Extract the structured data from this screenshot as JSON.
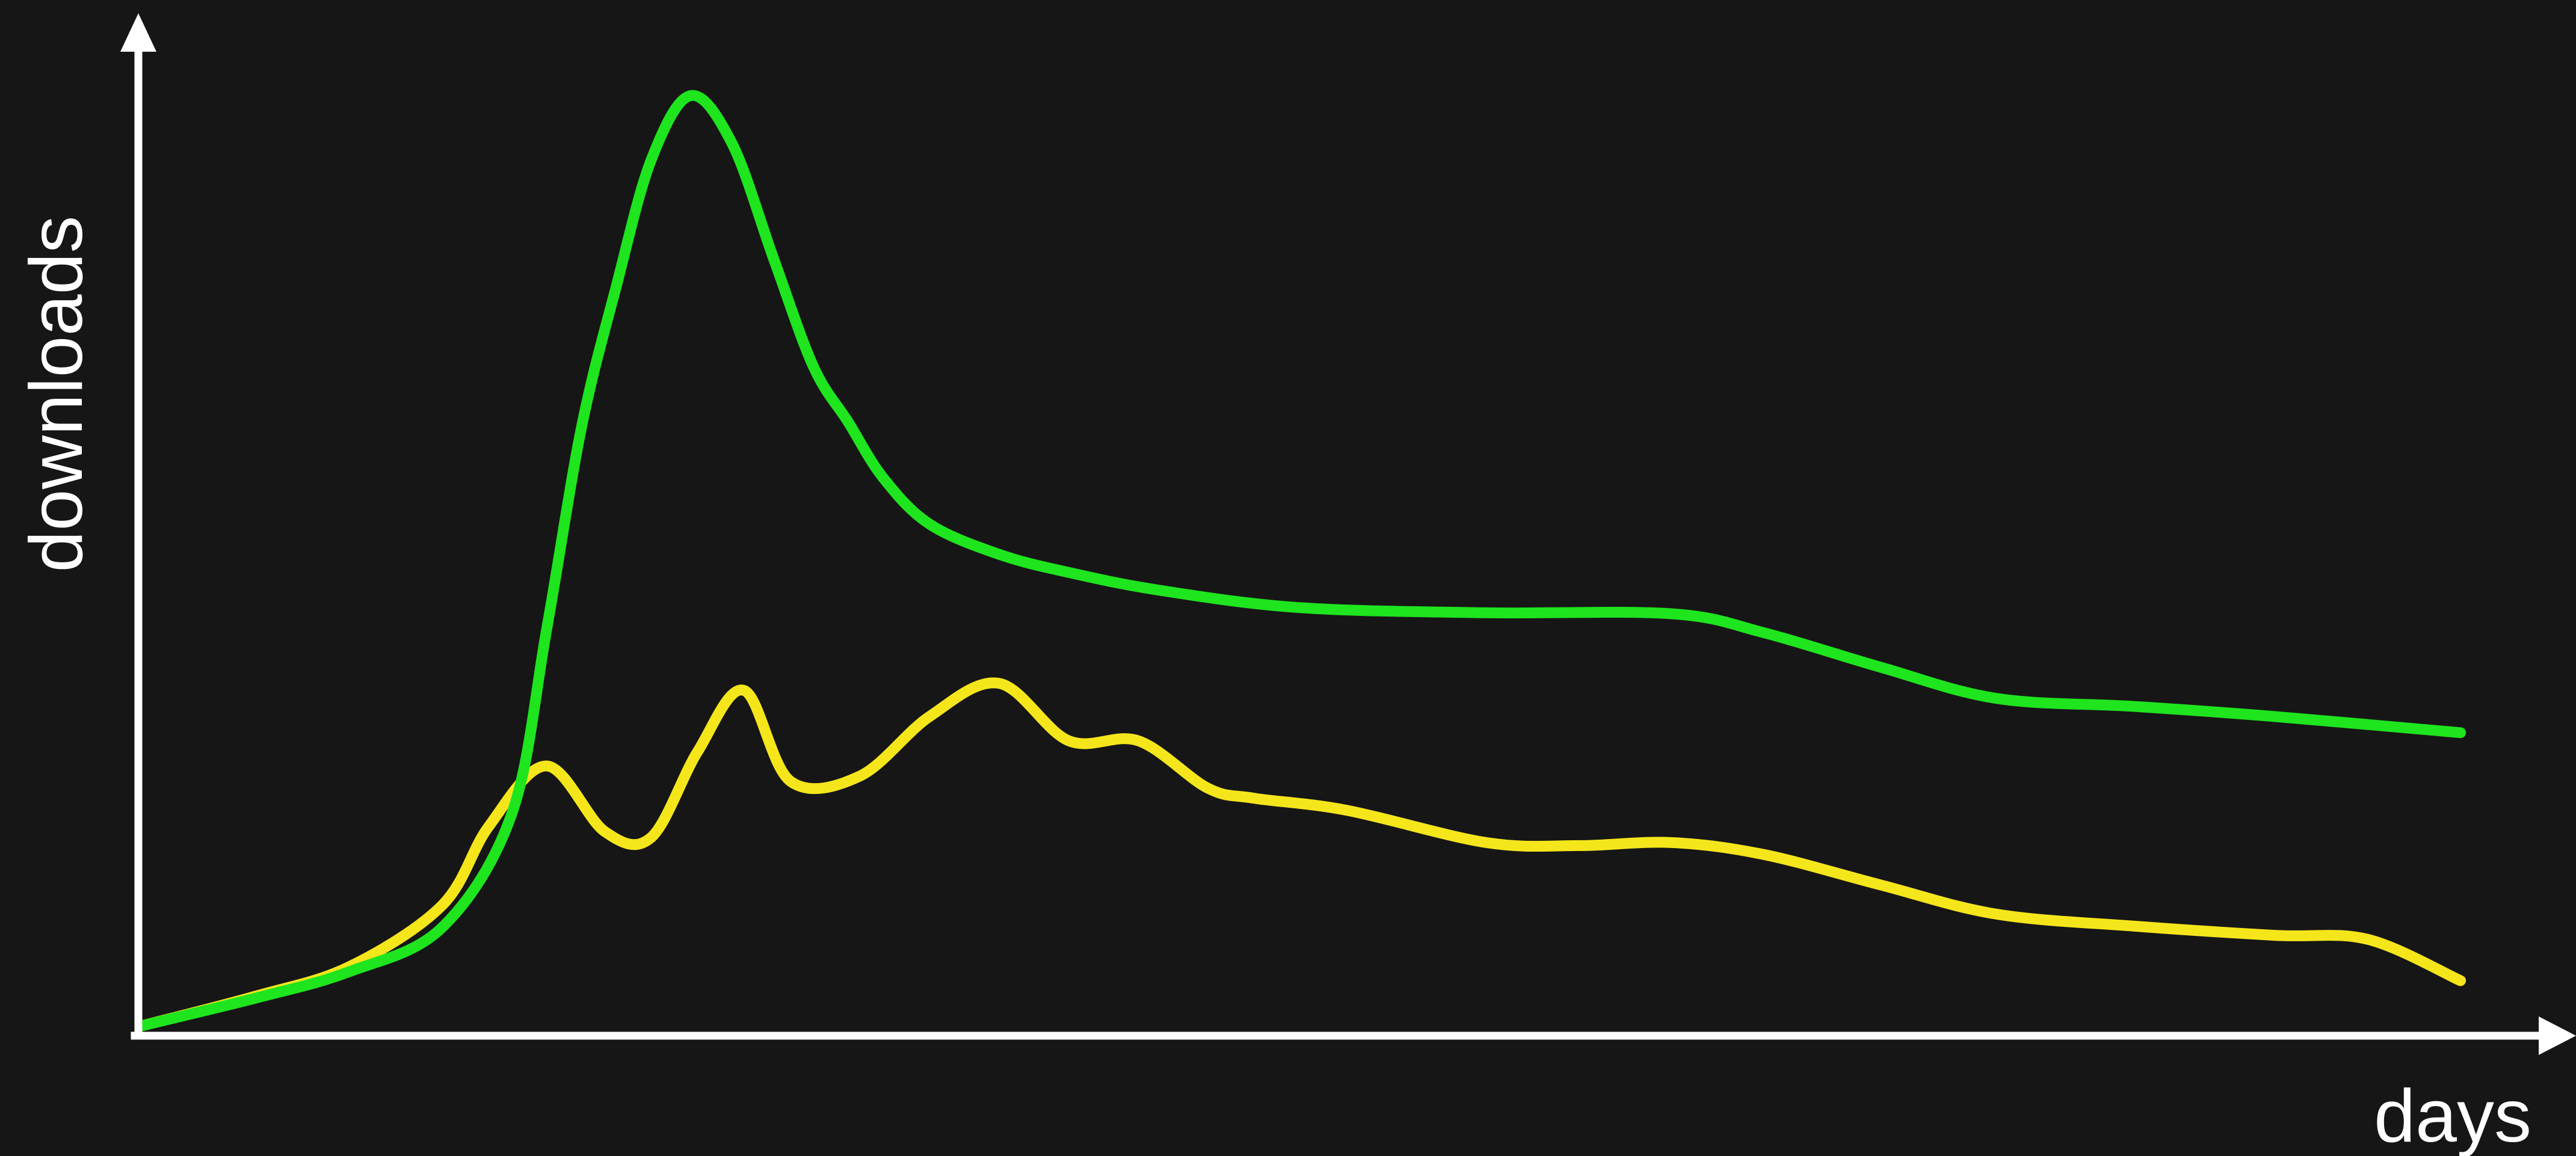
{
  "colors": {
    "background": "#161616",
    "axis": "#ffffff",
    "series_1": "#1ee51e",
    "series_2": "#f5e61c"
  },
  "chart_data": {
    "type": "line",
    "title": "",
    "xlabel": "days",
    "ylabel": "downloads",
    "grid": false,
    "legend": "none",
    "xlim": [
      0,
      100
    ],
    "ylim": [
      0,
      100
    ],
    "series": [
      {
        "color": "#1ee51e",
        "x": [
          0,
          5,
          9,
          13,
          16,
          17.5,
          19,
          20.5,
          22,
          23.7,
          25.5,
          27.3,
          29,
          30.5,
          32,
          34,
          37,
          40,
          44,
          50,
          58,
          66,
          70,
          75,
          80,
          86,
          92,
          100
        ],
        "y": [
          0.6,
          3.4,
          6.0,
          10.4,
          21.7,
          40.0,
          60.0,
          74.0,
          86.5,
          92.9,
          88.1,
          76.6,
          66.0,
          60.5,
          55.0,
          50.4,
          47.4,
          45.6,
          43.8,
          42.1,
          41.6,
          41.5,
          39.6,
          36.2,
          33.1,
          32.3,
          31.3,
          29.7
        ]
      },
      {
        "color": "#f5e61c",
        "x": [
          0,
          5,
          9,
          13,
          15,
          17.5,
          20,
          22,
          24,
          26,
          28,
          31,
          34,
          37,
          40,
          43,
          46,
          48,
          52,
          58,
          62,
          66,
          70,
          75,
          80,
          86,
          92,
          96,
          100
        ],
        "y": [
          0.6,
          3.6,
          6.5,
          12.6,
          20.4,
          26.4,
          19.9,
          19.3,
          27.8,
          33.9,
          24.9,
          25.4,
          31.3,
          34.6,
          28.9,
          28.9,
          24.2,
          23.2,
          22.0,
          18.8,
          18.5,
          18.8,
          17.6,
          14.6,
          11.7,
          10.5,
          9.6,
          9.2,
          5.1
        ]
      }
    ]
  }
}
